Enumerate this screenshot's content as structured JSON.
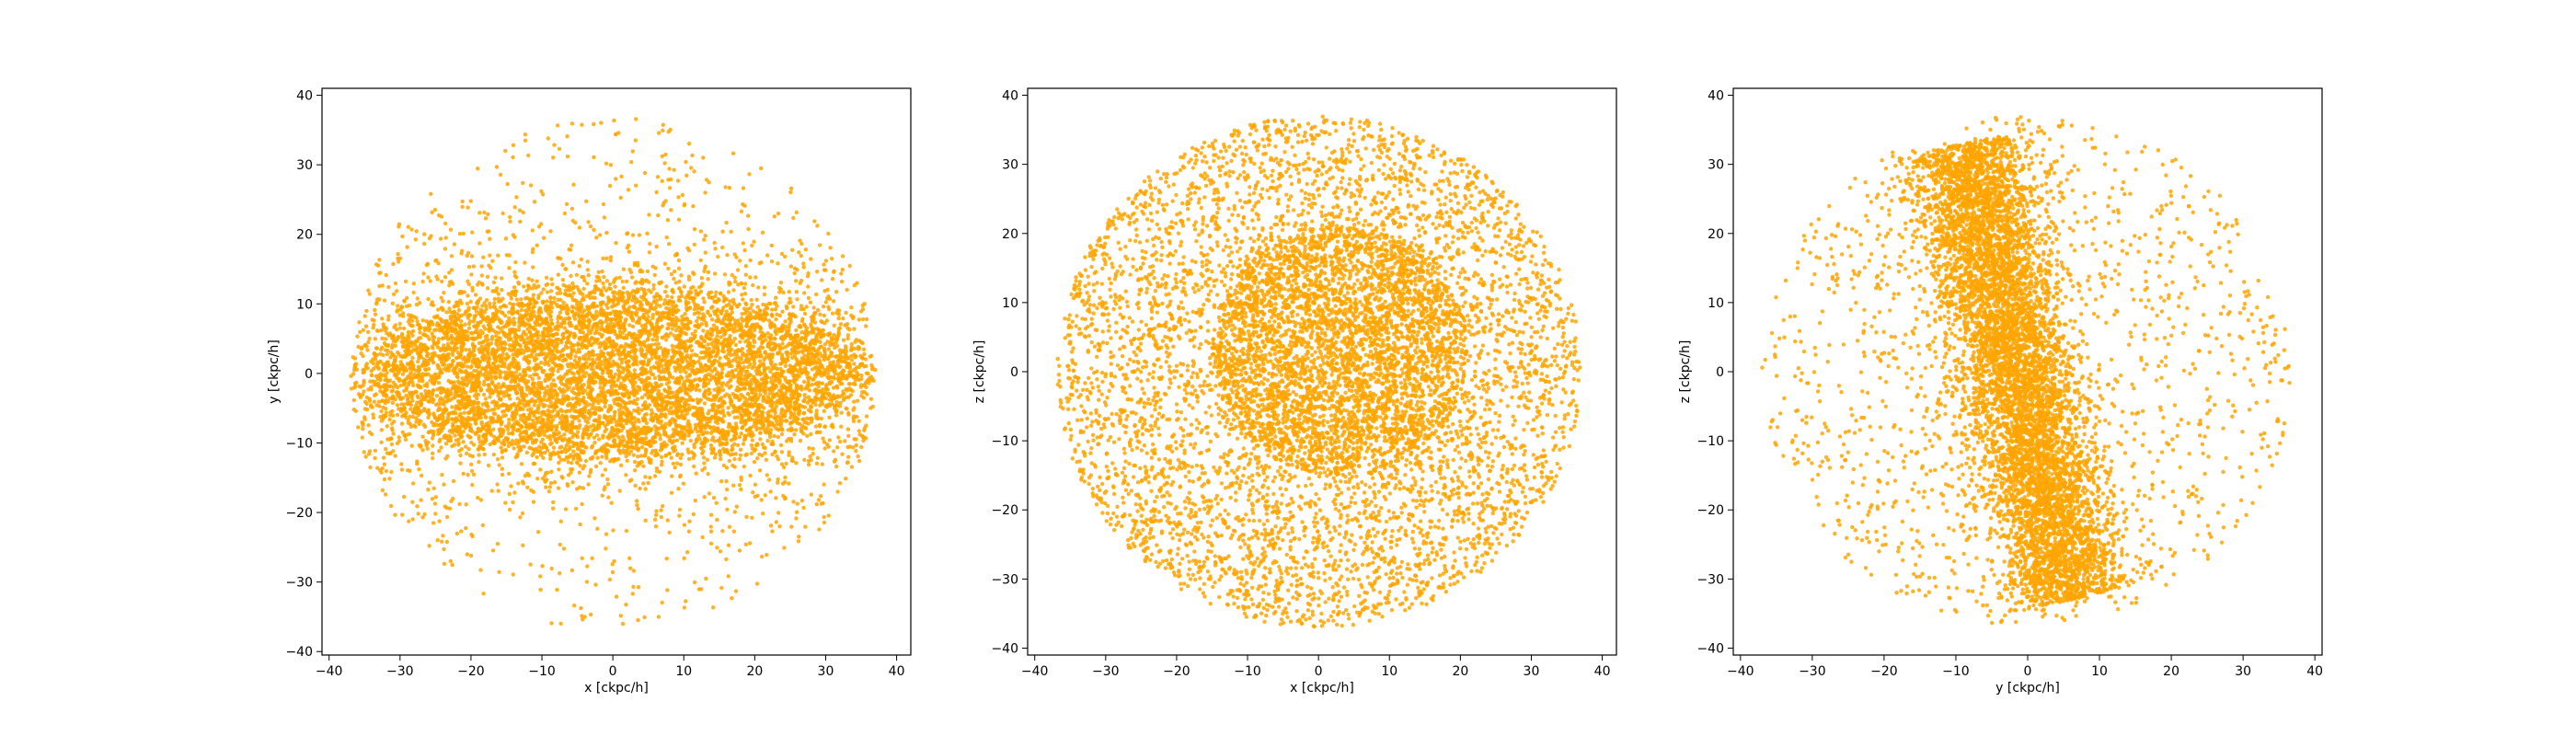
{
  "marker_color": "#FFA500",
  "chart_data": [
    {
      "type": "scatter",
      "xlabel": "x [ckpc/h]",
      "ylabel": "y [ckpc/h]",
      "xlim": [
        -41,
        42
      ],
      "ylim": [
        -40.5,
        41
      ],
      "xticks": [
        -40,
        -30,
        -20,
        -10,
        0,
        10,
        20,
        30,
        40
      ],
      "yticks": [
        -40,
        -30,
        -20,
        -10,
        0,
        10,
        20,
        30,
        40
      ],
      "xticklabels": [
        "−40",
        "−30",
        "−20",
        "−10",
        "0",
        "10",
        "20",
        "30",
        "40"
      ],
      "yticklabels": [
        "−40",
        "−30",
        "−20",
        "−10",
        "0",
        "10",
        "20",
        "30",
        "40"
      ],
      "grid": false,
      "distribution": {
        "shape": "flattened disk (oblate ellipse)",
        "core_center": [
          0,
          0
        ],
        "core_semi_axes": [
          27,
          12
        ],
        "halo_radius": 37,
        "approx_points": 80000
      }
    },
    {
      "type": "scatter",
      "xlabel": "x [ckpc/h]",
      "ylabel": "z [ckpc/h]",
      "xlim": [
        -41,
        42
      ],
      "ylim": [
        -41,
        41
      ],
      "xticks": [
        -40,
        -30,
        -20,
        -10,
        0,
        10,
        20,
        30,
        40
      ],
      "yticks": [
        -40,
        -30,
        -20,
        -10,
        0,
        10,
        20,
        30,
        40
      ],
      "xticklabels": [
        "−40",
        "−30",
        "−20",
        "−10",
        "0",
        "10",
        "20",
        "30",
        "40"
      ],
      "yticklabels": [
        "−40",
        "−30",
        "−20",
        "−10",
        "0",
        "10",
        "20",
        "30",
        "40"
      ],
      "grid": false,
      "distribution": {
        "shape": "filled circle with dense central core",
        "core_center": [
          3,
          3
        ],
        "core_radius": 18,
        "halo_radius": 37,
        "approx_points": 80000
      }
    },
    {
      "type": "scatter",
      "xlabel": "y [ckpc/h]",
      "ylabel": "z [ckpc/h]",
      "xlim": [
        -41,
        41
      ],
      "ylim": [
        -41,
        41
      ],
      "xticks": [
        -40,
        -30,
        -20,
        -10,
        0,
        10,
        20,
        30,
        40
      ],
      "yticks": [
        -40,
        -30,
        -20,
        -10,
        0,
        10,
        20,
        30,
        40
      ],
      "xticklabels": [
        "−40",
        "−30",
        "−20",
        "−10",
        "0",
        "10",
        "20",
        "30",
        "40"
      ],
      "yticklabels": [
        "−40",
        "−30",
        "−20",
        "−10",
        "0",
        "10",
        "20",
        "30",
        "40"
      ],
      "grid": false,
      "distribution": {
        "shape": "edge-on disk (tilted narrow band) inside sparse circular halo",
        "band_from": [
          -9,
          33
        ],
        "band_to": [
          6,
          -33
        ],
        "band_half_width": 7,
        "halo_radius": 37,
        "approx_points": 80000
      }
    }
  ]
}
